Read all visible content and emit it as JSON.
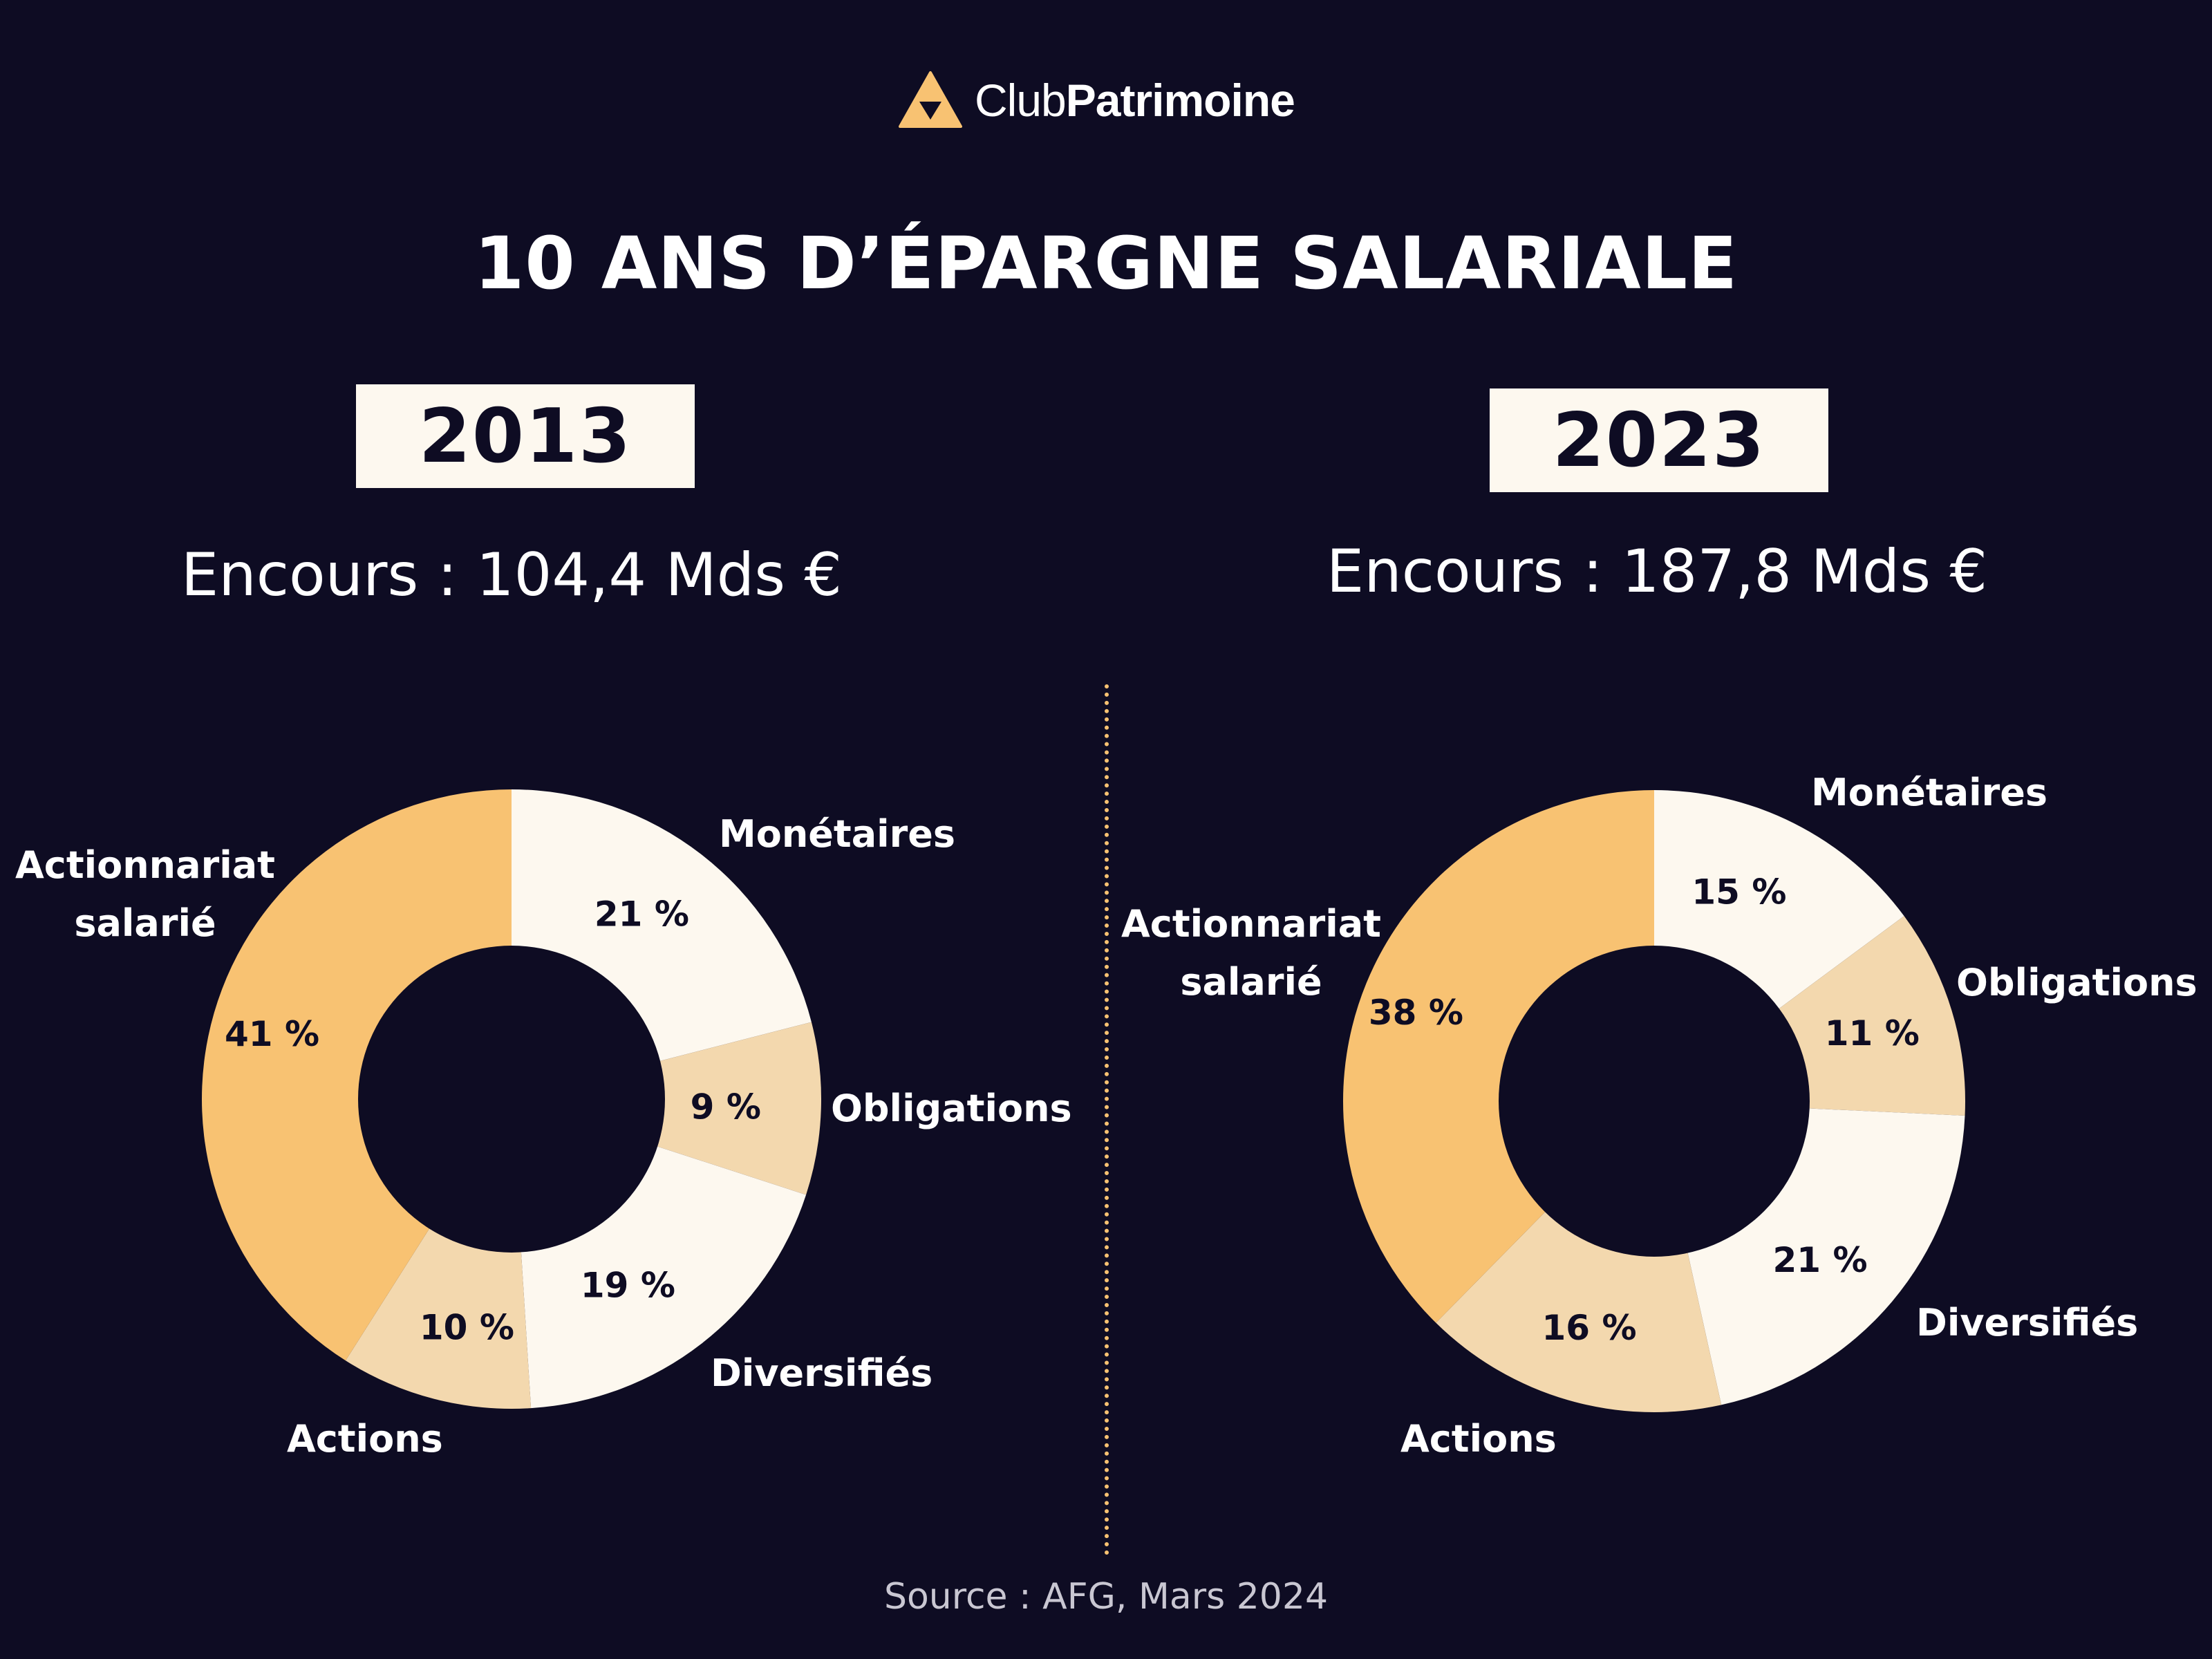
{
  "logo": {
    "text_light": "Club",
    "text_bold": "Patrimoine"
  },
  "title": "10 ANS D’ÉPARGNE SALARIALE",
  "source": "Source : AFG, Mars 2024",
  "colors": {
    "background": "#0e0c23",
    "orange": "#f8c272",
    "beige": "#f3d8ae",
    "cream": "#fdf8ef",
    "divider": "#f8c272"
  },
  "chart_data": [
    {
      "type": "pie",
      "year": "2013",
      "encours": "Encours : 104,4 Mds €",
      "slices": [
        {
          "name": "Monétaires",
          "value": 21,
          "label": "21 %",
          "color": "#fdf8ef"
        },
        {
          "name": "Obligations",
          "value": 9,
          "label": "9 %",
          "color": "#f3d8ae"
        },
        {
          "name": "Diversifiés",
          "value": 19,
          "label": "19 %",
          "color": "#fdf8ef"
        },
        {
          "name": "Actions",
          "value": 10,
          "label": "10 %",
          "color": "#f3d8ae"
        },
        {
          "name": "Actionnariat salarié",
          "value": 41,
          "label": "41 %",
          "color": "#f8c272"
        }
      ]
    },
    {
      "type": "pie",
      "year": "2023",
      "encours": "Encours : 187,8 Mds €",
      "slices": [
        {
          "name": "Monétaires",
          "value": 15,
          "label": "15 %",
          "color": "#fdf8ef"
        },
        {
          "name": "Obligations",
          "value": 11,
          "label": "11 %",
          "color": "#f3d8ae"
        },
        {
          "name": "Diversifiés",
          "value": 21,
          "label": "21 %",
          "color": "#fdf8ef"
        },
        {
          "name": "Actions",
          "value": 16,
          "label": "16 %",
          "color": "#f3d8ae"
        },
        {
          "name": "Actionnariat salarié",
          "value": 38,
          "label": "38 %",
          "color": "#f8c272"
        }
      ]
    }
  ]
}
